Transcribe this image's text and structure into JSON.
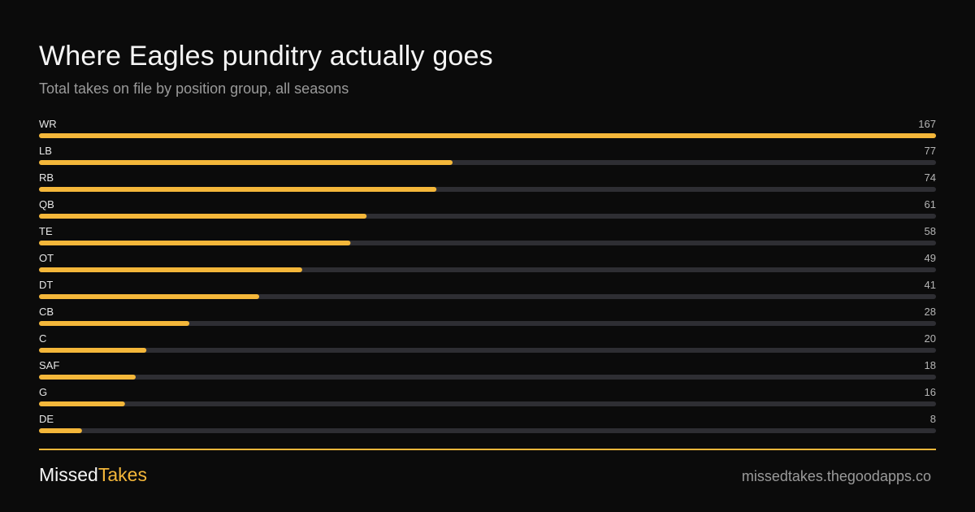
{
  "header": {
    "title": "Where Eagles punditry actually goes",
    "subtitle": "Total takes on file by position group, all seasons"
  },
  "footer": {
    "brand_first": "Missed",
    "brand_second": "Takes",
    "url": "missedtakes.thegoodapps.co"
  },
  "colors": {
    "background": "#0b0b0b",
    "bar_fill": "#f4b73a",
    "bar_track": "#2e2e33",
    "label_text": "#e6e6e6",
    "value_text": "#b5b5b5"
  },
  "chart_data": {
    "type": "bar",
    "orientation": "horizontal",
    "title": "Where Eagles punditry actually goes",
    "subtitle": "Total takes on file by position group, all seasons",
    "categories": [
      "WR",
      "LB",
      "RB",
      "QB",
      "TE",
      "OT",
      "DT",
      "CB",
      "C",
      "SAF",
      "G",
      "DE"
    ],
    "values": [
      167,
      77,
      74,
      61,
      58,
      49,
      41,
      28,
      20,
      18,
      16,
      8
    ],
    "xlim": [
      0,
      167
    ],
    "grid": false,
    "legend": "none"
  }
}
